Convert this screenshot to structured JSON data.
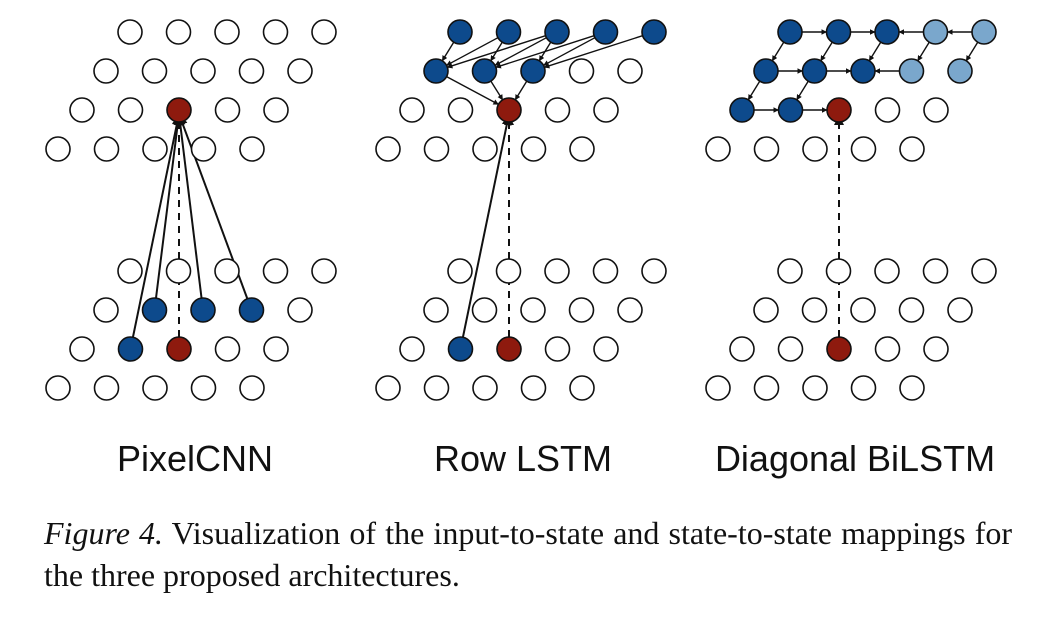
{
  "panels": [
    {
      "title": "PixelCNN",
      "context": "pixelcnn",
      "current_row_filled": [
        1
      ],
      "lower_row_filled": [
        1,
        2,
        3
      ]
    },
    {
      "title": "Row LSTM",
      "context": "row_lstm",
      "current_row_filled": [
        1
      ],
      "lower_row_filled": []
    },
    {
      "title": "Diagonal BiLSTM",
      "context": "diagonal_bilstm",
      "current_row_filled": [],
      "lower_row_filled": []
    }
  ],
  "caption": {
    "label": "Figure 4.",
    "text": " Visualization of the input-to-state and state-to-state mappings for the three proposed architectures."
  },
  "colors": {
    "blue": "#0d4a8c",
    "light_blue": "#7aa7cc",
    "red": "#8e1a0e",
    "empty": "#ffffff",
    "stroke": "#111111"
  }
}
